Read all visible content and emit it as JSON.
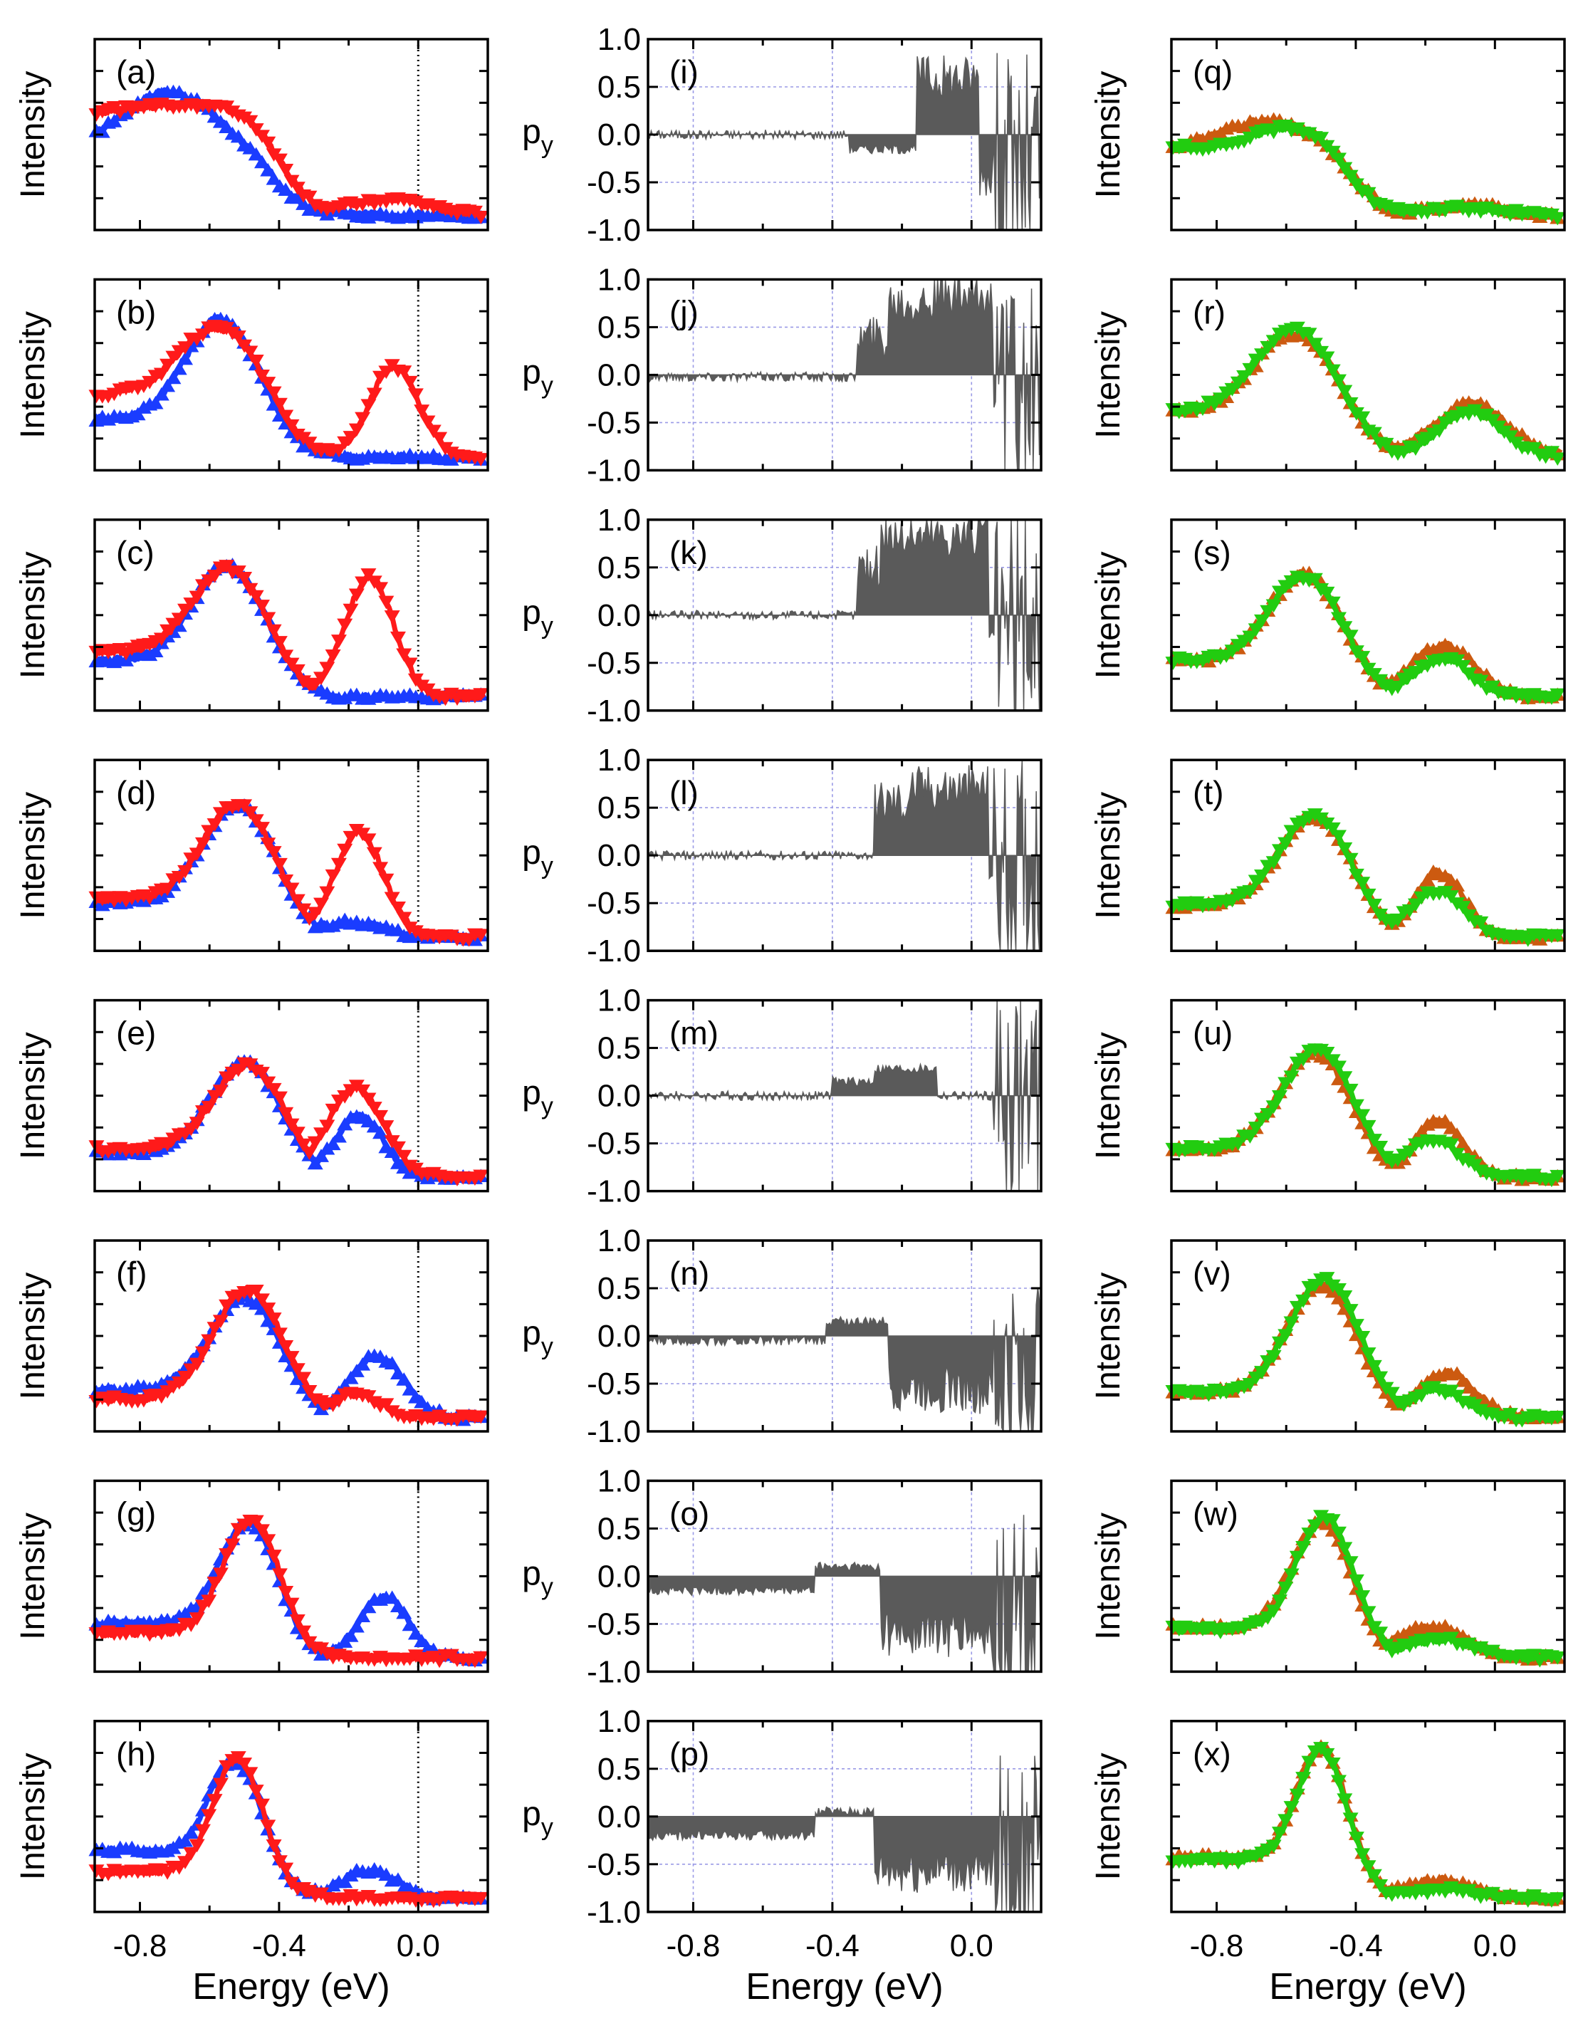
{
  "x_axis": {
    "label": "Energy (eV)",
    "range": [
      -0.93,
      0.2
    ],
    "ticks": [
      -0.8,
      -0.4,
      0.0
    ],
    "tick_labels": [
      "-0.8",
      "-0.4",
      "0.0"
    ]
  },
  "y_axis_left": {
    "label": "Intensity"
  },
  "y_axis_mid": {
    "label": "p",
    "label_sub": "y",
    "range": [
      -1.0,
      1.0
    ],
    "ticks": [
      1.0,
      0.5,
      0.0,
      -0.5,
      -1.0
    ],
    "tick_labels": [
      "1.0",
      "0.5",
      "0.0",
      "-0.5",
      "-1.0"
    ]
  },
  "colors": {
    "blue": "#1a3cff",
    "red": "#ff1a1a",
    "orange": "#cc5a10",
    "green": "#22cc10",
    "gray": "#5a5a5a"
  },
  "chart_data": {
    "type": "line",
    "layout": "8 rows x 3 columns of panels sharing the Energy (eV) x-axis",
    "columns": [
      {
        "kind": "intensity",
        "markers": [
          "up-triangle",
          "down-triangle"
        ],
        "series_colors": [
          "blue",
          "red"
        ],
        "panels": [
          {
            "label": "(a)",
            "peaks": [
              [
                -0.72,
                0.78,
                0.14
              ],
              [
                -0.58,
                0.5,
                0.09
              ]
            ],
            "peaks2": [
              [
                -0.68,
                0.7,
                0.16
              ],
              [
                -0.08,
                0.13,
                0.12
              ]
            ],
            "start": [
              0.4,
              0.64
            ],
            "end": [
              0.04,
              0.03
            ]
          },
          {
            "label": "(b)",
            "peaks": [
              [
                -0.57,
                0.86,
                0.1
              ]
            ],
            "peaks2": [
              [
                -0.58,
                0.8,
                0.11
              ],
              [
                -0.07,
                0.57,
                0.07
              ]
            ],
            "start": [
              0.26,
              0.4
            ],
            "end": [
              0.03,
              0.03
            ]
          },
          {
            "label": "(c)",
            "peaks": [
              [
                -0.55,
                0.82,
                0.1
              ]
            ],
            "peaks2": [
              [
                -0.55,
                0.8,
                0.1
              ],
              [
                -0.14,
                0.75,
                0.07
              ]
            ],
            "start": [
              0.25,
              0.3
            ],
            "end": [
              0.03,
              0.03
            ]
          },
          {
            "label": "(d)",
            "peaks": [
              [
                -0.52,
                0.83,
                0.1
              ],
              [
                -0.2,
                0.12,
                0.1
              ]
            ],
            "peaks2": [
              [
                -0.52,
                0.82,
                0.1
              ],
              [
                -0.17,
                0.66,
                0.07
              ]
            ],
            "start": [
              0.24,
              0.26
            ],
            "end": [
              0.03,
              0.03
            ]
          },
          {
            "label": "(e)",
            "peaks": [
              [
                -0.5,
                0.72,
                0.1
              ],
              [
                -0.17,
                0.4,
                0.07
              ]
            ],
            "peaks2": [
              [
                -0.49,
                0.7,
                0.1
              ],
              [
                -0.18,
                0.57,
                0.08
              ]
            ],
            "start": [
              0.18,
              0.2
            ],
            "end": [
              0.03,
              0.03
            ]
          },
          {
            "label": "(f)",
            "peaks": [
              [
                -0.5,
                0.75,
                0.1
              ],
              [
                -0.12,
                0.4,
                0.08
              ]
            ],
            "peaks2": [
              [
                -0.49,
                0.8,
                0.1
              ],
              [
                -0.18,
                0.17,
                0.07
              ]
            ],
            "start": [
              0.2,
              0.14
            ],
            "end": [
              0.03,
              0.03
            ]
          },
          {
            "label": "(g)",
            "peaks": [
              [
                -0.49,
                0.85,
                0.08
              ],
              [
                -0.1,
                0.4,
                0.07
              ]
            ],
            "peaks2": [
              [
                -0.48,
                0.86,
                0.08
              ]
            ],
            "start": [
              0.24,
              0.18
            ],
            "end": [
              0.03,
              0.03
            ]
          },
          {
            "label": "(h)",
            "peaks": [
              [
                -0.53,
                0.86,
                0.07
              ],
              [
                -0.14,
                0.2,
                0.08
              ]
            ],
            "peaks2": [
              [
                -0.52,
                0.87,
                0.07
              ]
            ],
            "start": [
              0.32,
              0.19
            ],
            "end": [
              0.03,
              0.03
            ]
          }
        ]
      },
      {
        "kind": "spin polarization p_y",
        "panels": [
          {
            "label": "(i)",
            "regions": [
              [
                -0.93,
                -0.35,
                0.0
              ],
              [
                -0.35,
                -0.16,
                -0.15
              ],
              [
                -0.16,
                0.02,
                0.6
              ],
              [
                0.02,
                0.2,
                -0.4
              ]
            ]
          },
          {
            "label": "(j)",
            "regions": [
              [
                -0.93,
                -0.33,
                -0.02
              ],
              [
                -0.33,
                -0.24,
                0.4
              ],
              [
                -0.24,
                0.08,
                0.8
              ],
              [
                0.08,
                0.2,
                -0.3
              ]
            ]
          },
          {
            "label": "(k)",
            "regions": [
              [
                -0.93,
                -0.33,
                0.0
              ],
              [
                -0.33,
                -0.26,
                0.5
              ],
              [
                -0.26,
                0.05,
                0.85
              ],
              [
                0.05,
                0.2,
                -0.2
              ]
            ]
          },
          {
            "label": "(l)",
            "regions": [
              [
                -0.93,
                -0.28,
                0.0
              ],
              [
                -0.28,
                -0.18,
                0.55
              ],
              [
                -0.18,
                0.05,
                0.7
              ],
              [
                0.05,
                0.2,
                -0.2
              ]
            ]
          },
          {
            "label": "(m)",
            "regions": [
              [
                -0.93,
                -0.4,
                0.0
              ],
              [
                -0.4,
                -0.28,
                0.15
              ],
              [
                -0.28,
                -0.1,
                0.28
              ],
              [
                -0.1,
                0.2,
                0.0
              ]
            ]
          },
          {
            "label": "(n)",
            "regions": [
              [
                -0.93,
                -0.42,
                -0.05
              ],
              [
                -0.42,
                -0.24,
                0.15
              ],
              [
                -0.24,
                0.0,
                -0.55
              ],
              [
                0.0,
                0.2,
                -0.6
              ]
            ]
          },
          {
            "label": "(o)",
            "regions": [
              [
                -0.93,
                -0.45,
                -0.15
              ],
              [
                -0.45,
                -0.26,
                0.1
              ],
              [
                -0.26,
                0.0,
                -0.6
              ],
              [
                0.0,
                0.2,
                -0.65
              ]
            ]
          },
          {
            "label": "(p)",
            "regions": [
              [
                -0.93,
                -0.45,
                -0.2
              ],
              [
                -0.45,
                -0.28,
                0.05
              ],
              [
                -0.28,
                0.0,
                -0.55
              ],
              [
                0.0,
                0.2,
                -0.6
              ]
            ]
          }
        ]
      },
      {
        "kind": "intensity",
        "markers": [
          "up-triangle",
          "down-triangle"
        ],
        "series_colors": [
          "orange",
          "green"
        ],
        "panels": [
          {
            "label": "(q)",
            "peaks": [
              [
                -0.66,
                0.6,
                0.14
              ],
              [
                -0.08,
                0.1,
                0.12
              ]
            ],
            "peaks2": [
              [
                -0.6,
                0.56,
                0.1
              ],
              [
                -0.1,
                0.08,
                0.12
              ]
            ],
            "start": [
              0.42,
              0.44
            ],
            "end": [
              0.03,
              0.03
            ]
          },
          {
            "label": "(r)",
            "peaks": [
              [
                -0.58,
                0.77,
                0.11
              ],
              [
                -0.07,
                0.35,
                0.1
              ]
            ],
            "peaks2": [
              [
                -0.58,
                0.8,
                0.11
              ],
              [
                -0.07,
                0.3,
                0.09
              ]
            ],
            "start": [
              0.3,
              0.3
            ],
            "end": [
              0.05,
              0.03
            ]
          },
          {
            "label": "(s)",
            "peaks": [
              [
                -0.55,
                0.77,
                0.1
              ],
              [
                -0.15,
                0.34,
                0.09
              ]
            ],
            "peaks2": [
              [
                -0.55,
                0.75,
                0.1
              ],
              [
                -0.15,
                0.26,
                0.08
              ]
            ],
            "start": [
              0.25,
              0.25
            ],
            "end": [
              0.03,
              0.03
            ]
          },
          {
            "label": "(t)",
            "peaks": [
              [
                -0.52,
                0.76,
                0.1
              ],
              [
                -0.16,
                0.42,
                0.07
              ]
            ],
            "peaks2": [
              [
                -0.52,
                0.76,
                0.1
              ],
              [
                -0.17,
                0.3,
                0.08
              ]
            ],
            "start": [
              0.22,
              0.22
            ],
            "end": [
              0.03,
              0.03
            ]
          },
          {
            "label": "(u)",
            "peaks": [
              [
                -0.52,
                0.78,
                0.1
              ],
              [
                -0.16,
                0.37,
                0.07
              ]
            ],
            "peaks2": [
              [
                -0.51,
                0.8,
                0.1
              ],
              [
                -0.18,
                0.26,
                0.08
              ]
            ],
            "start": [
              0.2,
              0.2
            ],
            "end": [
              0.03,
              0.03
            ]
          },
          {
            "label": "(v)",
            "peaks": [
              [
                -0.5,
                0.82,
                0.1
              ],
              [
                -0.14,
                0.3,
                0.08
              ]
            ],
            "peaks2": [
              [
                -0.49,
                0.86,
                0.1
              ],
              [
                -0.17,
                0.2,
                0.08
              ]
            ],
            "start": [
              0.18,
              0.18
            ],
            "end": [
              0.03,
              0.03
            ]
          },
          {
            "label": "(w)",
            "peaks": [
              [
                -0.5,
                0.86,
                0.08
              ],
              [
                -0.18,
                0.22,
                0.1
              ]
            ],
            "peaks2": [
              [
                -0.49,
                0.88,
                0.08
              ],
              [
                -0.16,
                0.14,
                0.1
              ]
            ],
            "start": [
              0.22,
              0.2
            ],
            "end": [
              0.03,
              0.03
            ]
          },
          {
            "label": "(x)",
            "peaks": [
              [
                -0.5,
                0.94,
                0.07
              ],
              [
                -0.16,
                0.14,
                0.1
              ]
            ],
            "peaks2": [
              [
                -0.5,
                0.92,
                0.07
              ],
              [
                -0.16,
                0.08,
                0.1
              ]
            ],
            "start": [
              0.28,
              0.26
            ],
            "end": [
              0.03,
              0.03
            ]
          }
        ]
      }
    ]
  }
}
